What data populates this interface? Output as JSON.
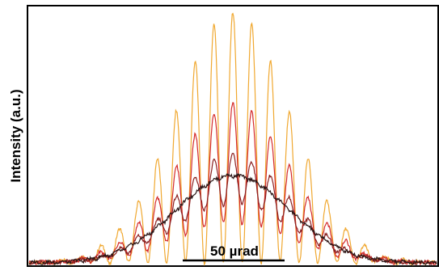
{
  "chart_data": {
    "type": "line",
    "title": "",
    "ylabel": "Intensity (a.u.)",
    "xlabel": "",
    "x_unit": "µrad",
    "xlim": [
      -140,
      140
    ],
    "ylim": [
      0,
      1.0
    ],
    "grid": false,
    "legend": "none",
    "scale_bar": {
      "label": "50 µrad",
      "length": 50
    },
    "series": [
      {
        "color": "#f0a830",
        "envelope_peak": 0.98,
        "fringe_period": 13,
        "fringe_visibility": 1.0,
        "envelope_width": 55,
        "modulation": true
      },
      {
        "color": "#d42a2a",
        "envelope_peak": 0.62,
        "fringe_period": 13,
        "fringe_visibility": 0.75,
        "envelope_width": 55,
        "modulation": true
      },
      {
        "color": "#8a2020",
        "envelope_peak": 0.42,
        "fringe_period": 13,
        "fringe_visibility": 0.45,
        "envelope_width": 55,
        "modulation": true
      },
      {
        "color": "#2a1414",
        "envelope_peak": 0.34,
        "fringe_period": 13,
        "fringe_visibility": 0.0,
        "envelope_width": 55,
        "modulation": false
      }
    ]
  }
}
